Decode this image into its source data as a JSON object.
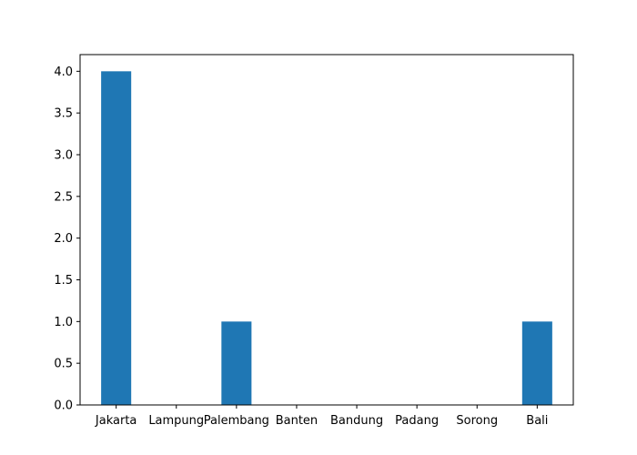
{
  "chart_data": {
    "type": "bar",
    "title": "",
    "xlabel": "",
    "ylabel": "",
    "categories": [
      "Jakarta",
      "Lampung",
      "Palembang",
      "Banten",
      "Bandung",
      "Padang",
      "Sorong",
      "Bali"
    ],
    "values": [
      4,
      0,
      1,
      0,
      0,
      0,
      0,
      1
    ],
    "ylim": [
      0,
      4.2
    ],
    "yticks": [
      0.0,
      0.5,
      1.0,
      1.5,
      2.0,
      2.5,
      3.0,
      3.5,
      4.0
    ],
    "ytick_labels": [
      "0.0",
      "0.5",
      "1.0",
      "1.5",
      "2.0",
      "2.5",
      "3.0",
      "3.5",
      "4.0"
    ],
    "grid": false,
    "bar_color": "#1f77b4"
  }
}
